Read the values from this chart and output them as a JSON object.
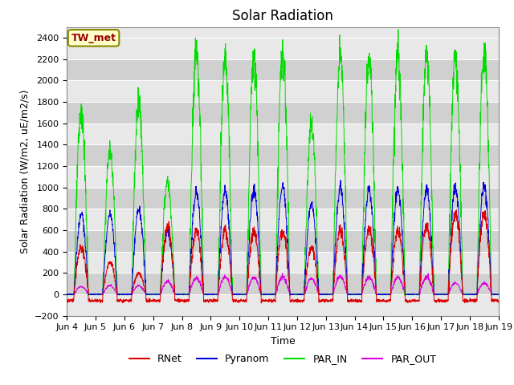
{
  "title": "Solar Radiation",
  "ylabel": "Solar Radiation (W/m2, uE/m2/s)",
  "xlabel": "Time",
  "ylim": [
    -200,
    2500
  ],
  "yticks": [
    -200,
    0,
    200,
    400,
    600,
    800,
    1000,
    1200,
    1400,
    1600,
    1800,
    2000,
    2200,
    2400
  ],
  "colors": {
    "RNet": "#dd0000",
    "Pyranom": "#0000dd",
    "PAR_IN": "#00dd00",
    "PAR_OUT": "#dd00dd"
  },
  "station_label": "TW_met",
  "station_label_color": "#990000",
  "station_box_facecolor": "#ffffcc",
  "station_box_edgecolor": "#888800",
  "plot_bg_light": "#e8e8e8",
  "plot_bg_dark": "#d0d0d0",
  "grid_color": "#ffffff",
  "n_days": 15,
  "start_day": 4,
  "title_fontsize": 12,
  "axis_label_fontsize": 9,
  "tick_fontsize": 8,
  "par_in_peaks": [
    1700,
    1350,
    1800,
    1050,
    2280,
    2230,
    2230,
    2250,
    1600,
    2250,
    2230,
    2230,
    2230,
    2230,
    2250
  ],
  "pyranom_peaks": [
    750,
    750,
    790,
    590,
    960,
    970,
    970,
    1010,
    850,
    990,
    970,
    970,
    970,
    1000,
    1010
  ],
  "rnet_peaks": [
    440,
    300,
    195,
    630,
    600,
    600,
    590,
    590,
    430,
    600,
    610,
    600,
    640,
    750,
    760
  ],
  "par_out_peaks": [
    75,
    80,
    80,
    120,
    155,
    160,
    155,
    165,
    150,
    170,
    155,
    155,
    165,
    105,
    105
  ]
}
